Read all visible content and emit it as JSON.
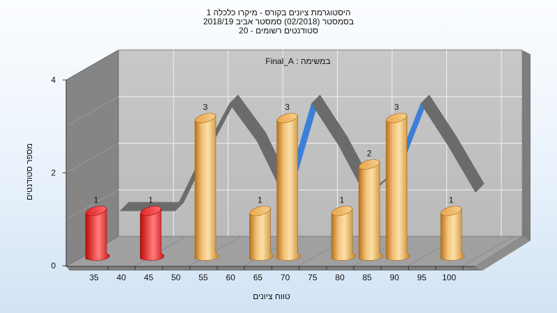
{
  "chart_data": {
    "type": "bar",
    "title_lines": [
      "היסטוגרמת ציונים בקורס - מיקרו כלכלה 1",
      "בסמסטר  (02/2018)  סמסטר אביב 2018/19",
      "סטודנטים רשומים - 20"
    ],
    "inner_label": "במשימה : Final_A",
    "xlabel": "טווח ציונים",
    "ylabel": "מספר סטודנטים",
    "ylim": [
      0,
      4
    ],
    "y_ticks": [
      "0",
      "2",
      "4"
    ],
    "x_ticks": [
      "35",
      "40",
      "45",
      "50",
      "55",
      "60",
      "65",
      "70",
      "75",
      "80",
      "85",
      "90",
      "95",
      "100"
    ],
    "bars": [
      {
        "x": 35,
        "value": 1,
        "label": "1",
        "color": "red"
      },
      {
        "x": 45,
        "value": 1,
        "label": "1",
        "color": "red"
      },
      {
        "x": 55,
        "value": 3,
        "label": "3",
        "color": "orange"
      },
      {
        "x": 65,
        "value": 1,
        "label": "1",
        "color": "orange"
      },
      {
        "x": 70,
        "value": 3,
        "label": "3",
        "color": "orange"
      },
      {
        "x": 80,
        "value": 1,
        "label": "1",
        "color": "orange"
      },
      {
        "x": 85,
        "value": 2,
        "label": "2",
        "color": "orange"
      },
      {
        "x": 90,
        "value": 3,
        "label": "3",
        "color": "orange"
      },
      {
        "x": 100,
        "value": 1,
        "label": "1",
        "color": "orange"
      }
    ],
    "trend_line": {
      "x": [
        35,
        40,
        45,
        50,
        55,
        60,
        65,
        70,
        75,
        80,
        85,
        90,
        95,
        100
      ],
      "values": [
        1,
        1,
        1,
        2.2,
        3.3,
        2.5,
        1.3,
        3.3,
        2.4,
        1.3,
        1.8,
        3.3,
        2.4,
        1.4
      ]
    },
    "grid": true,
    "colors": {
      "red_bar": "#e52a2a",
      "orange_bar": "#e9a646",
      "trend": "#6b6b6b",
      "trend_rise": "#3b7fd8"
    }
  }
}
